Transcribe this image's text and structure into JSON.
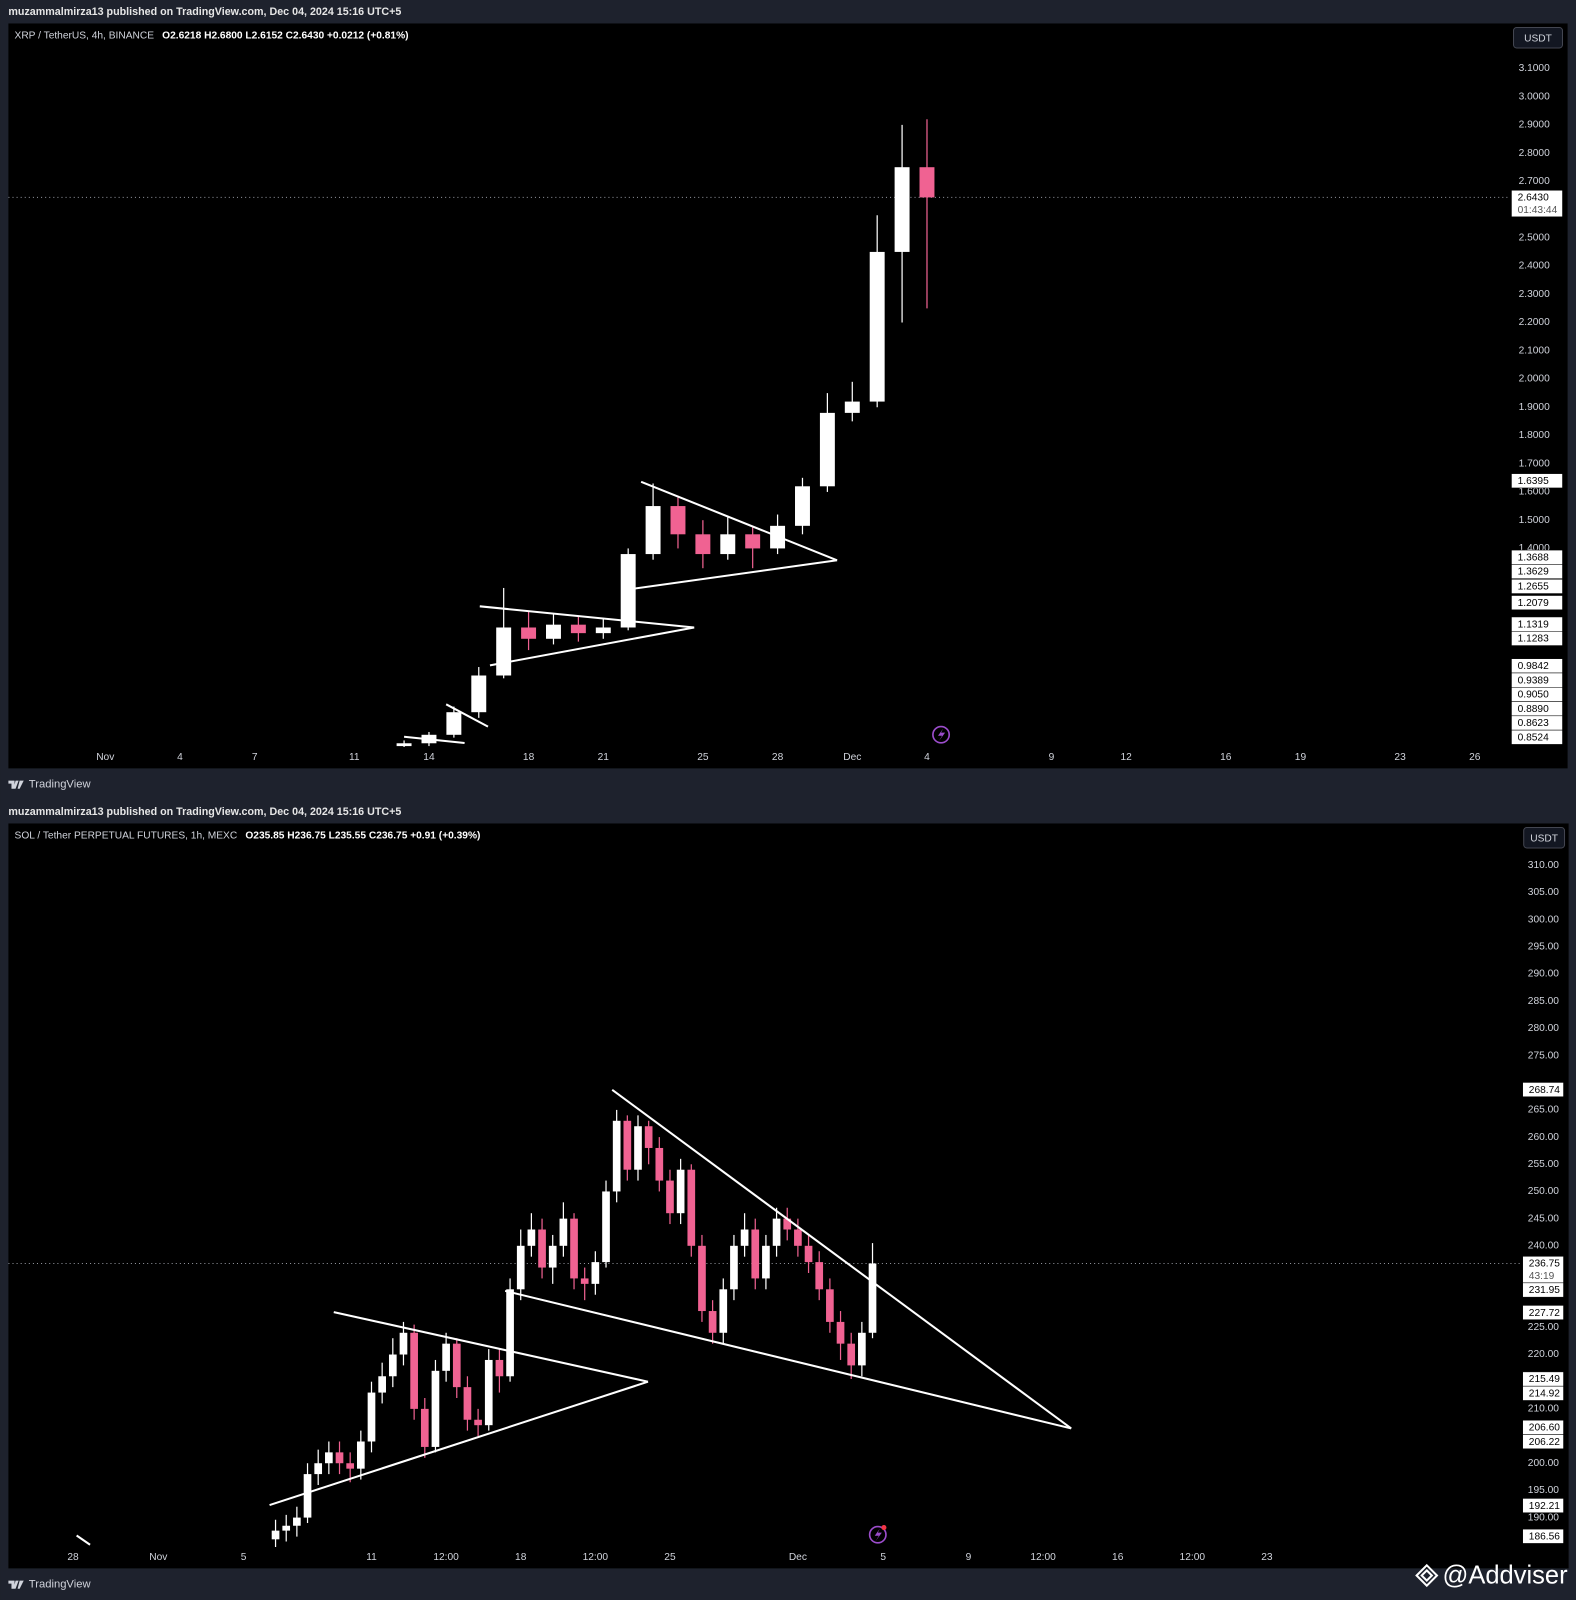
{
  "watermark": "@Addviser",
  "chart_data": [
    {
      "type": "candlestick",
      "published": "muzammalmirza13 published on TradingView.com, Dec 04, 2024 15:16 UTC+5",
      "title": "XRP / TetherUS, 4h, BINANCE",
      "ohlc": "O2.6218 H2.6800 L2.6152 C2.6430 +0.0212 (+0.81%)",
      "currency": "USDT",
      "brand": "TradingView",
      "up_color": "#ffffff",
      "down_color": "#f06292",
      "line_color": "#ffffff",
      "x": [
        13,
        14,
        15,
        16,
        17,
        18,
        19,
        20,
        21,
        22,
        23,
        24,
        25,
        26,
        27,
        28,
        29,
        30,
        31,
        32,
        33,
        34
      ],
      "open": [
        0.7,
        0.71,
        0.74,
        0.82,
        0.95,
        1.12,
        1.08,
        1.13,
        1.1,
        1.12,
        1.38,
        1.55,
        1.45,
        1.38,
        1.45,
        1.4,
        1.48,
        1.62,
        1.88,
        1.92,
        2.45,
        2.75
      ],
      "high": [
        0.72,
        0.75,
        0.84,
        0.98,
        1.26,
        1.18,
        1.17,
        1.16,
        1.15,
        1.4,
        1.63,
        1.58,
        1.5,
        1.51,
        1.48,
        1.52,
        1.65,
        1.95,
        1.99,
        2.58,
        2.9,
        2.92
      ],
      "low": [
        0.68,
        0.7,
        0.73,
        0.8,
        0.94,
        1.04,
        1.06,
        1.07,
        1.08,
        1.11,
        1.36,
        1.4,
        1.33,
        1.36,
        1.33,
        1.38,
        1.45,
        1.6,
        1.85,
        1.9,
        2.2,
        2.25
      ],
      "close": [
        0.71,
        0.74,
        0.82,
        0.95,
        1.12,
        1.08,
        1.13,
        1.1,
        1.12,
        1.38,
        1.55,
        1.45,
        1.38,
        1.45,
        1.4,
        1.48,
        1.62,
        1.88,
        1.92,
        2.45,
        2.75,
        2.643
      ],
      "xlim": [
        -2.89,
        57.35
      ],
      "xticks": [
        {
          "value": 1,
          "label": "Nov"
        },
        4,
        7,
        11,
        14,
        18,
        21,
        25,
        28,
        {
          "value": 31,
          "label": "Dec"
        },
        {
          "value": 34,
          "label": "4"
        },
        {
          "value": 39,
          "label": "9"
        },
        {
          "value": 42,
          "label": "12"
        },
        {
          "value": 46,
          "label": "16"
        },
        {
          "value": 49,
          "label": "19"
        },
        {
          "value": 53,
          "label": "23"
        },
        {
          "value": 56,
          "label": "26"
        }
      ],
      "ylim": [
        0.697,
        3.259
      ],
      "yticks": [
        {
          "value": 3.1,
          "label": "3.1000"
        },
        {
          "value": 3.0,
          "label": "3.0000"
        },
        {
          "value": 2.9,
          "label": "2.9000"
        },
        {
          "value": 2.8,
          "label": "2.8000"
        },
        {
          "value": 2.7,
          "label": "2.7000"
        },
        {
          "value": 2.5,
          "label": "2.5000"
        },
        {
          "value": 2.4,
          "label": "2.4000"
        },
        {
          "value": 2.3,
          "label": "2.3000"
        },
        {
          "value": 2.2,
          "label": "2.2000"
        },
        {
          "value": 2.1,
          "label": "2.1000"
        },
        {
          "value": 2.0,
          "label": "2.0000"
        },
        {
          "value": 1.9,
          "label": "1.9000"
        },
        {
          "value": 1.8,
          "label": "1.8000"
        },
        {
          "value": 1.7,
          "label": "1.7000"
        },
        {
          "value": 1.6,
          "label": "1.6000"
        },
        {
          "value": 1.5,
          "label": "1.5000"
        },
        {
          "value": 1.4,
          "label": "1.4000"
        }
      ],
      "last_price": {
        "value": 2.643,
        "label": "2.6430"
      },
      "countdown": "01:43:44",
      "price_labels": [
        {
          "value": 1.6395,
          "label": "1.6395"
        },
        {
          "value": 1.3688,
          "label": "1.3688"
        },
        {
          "value": 1.3629,
          "label": "1.3629"
        },
        {
          "value": 1.2655,
          "label": "1.2655"
        },
        {
          "value": 1.2079,
          "label": "1.2079"
        },
        {
          "value": 1.1319,
          "label": "1.1319"
        },
        {
          "value": 1.1283,
          "label": "1.1283"
        },
        {
          "value": 0.9842,
          "label": "0.9842"
        },
        {
          "value": 0.9389,
          "label": "0.9389"
        },
        {
          "value": 0.905,
          "label": "0.9050"
        },
        {
          "value": 0.889,
          "label": "0.8890"
        },
        {
          "value": 0.8623,
          "label": "0.8623"
        },
        {
          "value": 0.8524,
          "label": "0.8524"
        }
      ],
      "trendlines": [
        {
          "points": [
            [
              16.04,
              1.195
            ],
            [
              24.65,
              1.12
            ]
          ]
        },
        {
          "points": [
            [
              16.45,
              0.986
            ],
            [
              24.65,
              1.12
            ]
          ]
        },
        {
          "points": [
            [
              22.52,
              1.636
            ],
            [
              30.39,
              1.358
            ]
          ]
        },
        {
          "points": [
            [
              22.19,
              1.257
            ],
            [
              30.39,
              1.358
            ]
          ]
        },
        {
          "points": [
            [
              13.0,
              0.733
            ],
            [
              15.43,
              0.711
            ]
          ]
        },
        {
          "points": [
            [
              14.69,
              0.848
            ],
            [
              16.37,
              0.769
            ]
          ]
        }
      ]
    },
    {
      "type": "candlestick",
      "published": "muzammalmirza13 published on TradingView.com, Dec 04, 2024 15:16 UTC+5",
      "title": "SOL / Tether PERPETUAL FUTURES, 1h, MEXC",
      "ohlc": "O235.85 H236.75 L235.55 C236.75 +0.91 (+0.39%)",
      "currency": "USDT",
      "brand": "TradingView",
      "up_color": "#ffffff",
      "down_color": "#f06292",
      "line_color": "#ffffff",
      "x": [
        6.5,
        7,
        7.5,
        8,
        8.5,
        9,
        9.5,
        10,
        10.5,
        11,
        11.5,
        12,
        12.5,
        13,
        13.5,
        14,
        14.5,
        15,
        15.5,
        16,
        16.5,
        17,
        17.5,
        18,
        18.5,
        19,
        19.5,
        20,
        20.5,
        21,
        21.5,
        22,
        22.5,
        23,
        23.5,
        24,
        24.5,
        25,
        25.5,
        26,
        26.5,
        27,
        27.5,
        28,
        28.5,
        29,
        29.5,
        30,
        30.5,
        31,
        31.5,
        32,
        32.5,
        33,
        33.5,
        34,
        34.5
      ],
      "open": [
        186,
        187.6,
        188.5,
        190,
        198,
        200,
        202,
        200,
        199,
        204,
        213,
        216,
        220,
        224,
        210,
        203,
        217,
        222,
        214,
        208,
        207,
        219,
        216,
        232,
        240,
        243,
        236,
        240,
        245,
        234,
        233,
        237,
        250,
        263,
        254,
        262,
        258,
        252,
        246,
        254,
        240,
        228,
        224,
        232,
        240,
        243,
        234,
        240,
        245,
        243,
        240,
        237,
        232,
        226,
        222,
        218,
        224
      ],
      "high": [
        189.6,
        190.5,
        192,
        200,
        202.5,
        204,
        204,
        202,
        206,
        215,
        218.5,
        223,
        226,
        225.5,
        212,
        219,
        224,
        223,
        216,
        210,
        221,
        221,
        234,
        243,
        246,
        245,
        242,
        248,
        246,
        236,
        239,
        252,
        265,
        264,
        264,
        263,
        260,
        254,
        256,
        255,
        242,
        230,
        234,
        242,
        246,
        245,
        242,
        247,
        247,
        245,
        242,
        239,
        234,
        228,
        224,
        226,
        240.5
      ],
      "low": [
        184.5,
        185.6,
        186.5,
        189,
        196,
        198,
        198,
        196.5,
        197,
        202,
        211,
        214,
        218,
        208,
        201,
        202,
        215,
        212,
        206,
        205,
        206,
        213,
        215,
        230,
        238,
        234,
        233,
        238,
        232,
        230,
        231,
        236,
        248,
        252,
        252,
        255,
        250,
        244,
        244,
        238,
        226,
        222,
        222,
        230,
        238,
        232,
        232,
        238,
        241,
        238,
        235,
        230,
        224,
        219,
        215.5,
        216,
        223
      ],
      "close": [
        187.6,
        188.5,
        190,
        198,
        200,
        202,
        200,
        199,
        204,
        213,
        216,
        220,
        224,
        210,
        203,
        217,
        222,
        214,
        208,
        207,
        219,
        216,
        232,
        240,
        243,
        236,
        240,
        245,
        234,
        233,
        237,
        250,
        263,
        254,
        262,
        258,
        252,
        246,
        254,
        240,
        228,
        224,
        232,
        240,
        243,
        234,
        240,
        245,
        243,
        240,
        237,
        232,
        226,
        222,
        218,
        224,
        236.75
      ],
      "xlim": [
        -6.03,
        64.9
      ],
      "xticks": [
        {
          "value": -3,
          "label": "28"
        },
        {
          "value": 1,
          "label": "Nov"
        },
        5,
        11,
        {
          "value": 14.5,
          "label": "12:00"
        },
        18,
        {
          "value": 21.5,
          "label": "12:00"
        },
        25,
        {
          "value": 31,
          "label": "Dec"
        },
        {
          "value": 35,
          "label": "5"
        },
        {
          "value": 39,
          "label": "9"
        },
        {
          "value": 42.5,
          "label": "12:00"
        },
        {
          "value": 46,
          "label": "16"
        },
        {
          "value": 49.5,
          "label": "12:00"
        },
        {
          "value": 53,
          "label": "23"
        }
      ],
      "ylim": [
        184.6,
        317.7
      ],
      "yticks": [
        {
          "value": 310,
          "label": "310.00"
        },
        {
          "value": 305,
          "label": "305.00"
        },
        {
          "value": 300,
          "label": "300.00"
        },
        {
          "value": 295,
          "label": "295.00"
        },
        {
          "value": 290,
          "label": "290.00"
        },
        {
          "value": 285,
          "label": "285.00"
        },
        {
          "value": 280,
          "label": "280.00"
        },
        {
          "value": 275,
          "label": "275.00"
        },
        {
          "value": 265,
          "label": "265.00"
        },
        {
          "value": 260,
          "label": "260.00"
        },
        {
          "value": 255,
          "label": "255.00"
        },
        {
          "value": 250,
          "label": "250.00"
        },
        {
          "value": 245,
          "label": "245.00"
        },
        {
          "value": 240,
          "label": "240.00"
        },
        {
          "value": 225,
          "label": "225.00"
        },
        {
          "value": 220,
          "label": "220.00"
        },
        {
          "value": 210,
          "label": "210.00"
        },
        {
          "value": 200,
          "label": "200.00"
        },
        {
          "value": 195,
          "label": "195.00"
        },
        {
          "value": 190,
          "label": "190.00"
        }
      ],
      "last_price": {
        "value": 236.75,
        "label": "236.75"
      },
      "countdown": "43:19",
      "price_labels": [
        {
          "value": 268.74,
          "label": "268.74"
        },
        {
          "value": 231.95,
          "label": "231.95"
        },
        {
          "value": 227.72,
          "label": "227.72"
        },
        {
          "value": 215.49,
          "label": "215.49"
        },
        {
          "value": 214.92,
          "label": "214.92"
        },
        {
          "value": 206.6,
          "label": "206.60"
        },
        {
          "value": 206.22,
          "label": "206.22"
        },
        {
          "value": 192.21,
          "label": "192.21"
        },
        {
          "value": 186.56,
          "label": "186.56"
        }
      ],
      "trendlines": [
        {
          "points": [
            [
              9.23,
              227.8
            ],
            [
              23.97,
              215.0
            ]
          ]
        },
        {
          "points": [
            [
              6.22,
              192.3
            ],
            [
              23.97,
              215.0
            ]
          ]
        },
        {
          "points": [
            [
              22.29,
              268.7
            ],
            [
              43.82,
              206.4
            ]
          ]
        },
        {
          "points": [
            [
              17.27,
              231.7
            ],
            [
              43.82,
              206.4
            ]
          ]
        },
        {
          "points": [
            [
              -2.83,
              186.7
            ],
            [
              -2.2,
              185.0
            ]
          ]
        }
      ]
    }
  ]
}
